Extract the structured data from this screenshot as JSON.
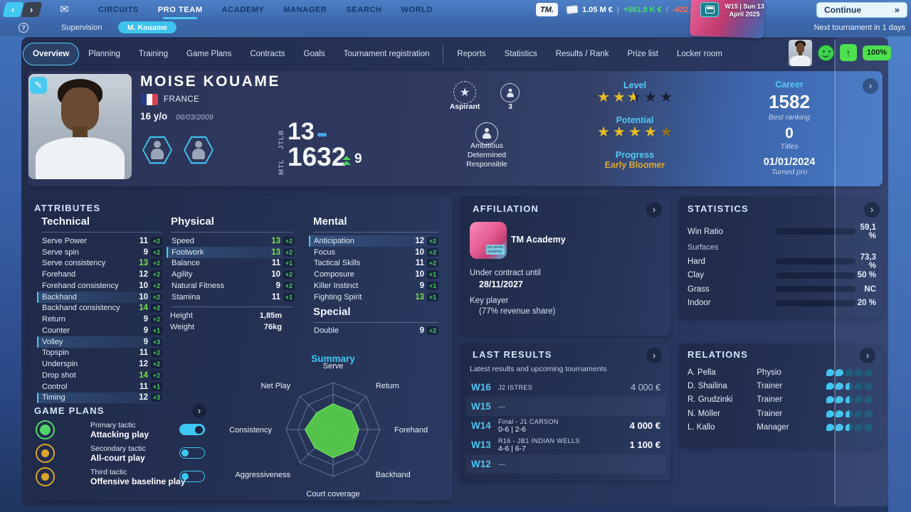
{
  "colors": {
    "accent": "#45c8f2",
    "positive": "#46e06a",
    "negative": "#ff6a55",
    "gold": "#e9bd23",
    "radar_fill": "#58d747",
    "bar_orange": "#e87c2e",
    "bar_blue": "#1f8fd6",
    "bar_red": "#d63a20"
  },
  "topbar": {
    "nav": [
      {
        "label": "CIRCUITS"
      },
      {
        "label": "PRO TEAM",
        "active": true
      },
      {
        "label": "ACADEMY"
      },
      {
        "label": "MANAGER"
      },
      {
        "label": "SEARCH"
      },
      {
        "label": "WORLD"
      }
    ],
    "logo": "TM.",
    "balance": "1.05 M €",
    "separator": "|",
    "income": "+561.9 K €",
    "slash": "/",
    "expense": "-422.5 K €",
    "date_line1": "W15 | Sun 13",
    "date_line2": "April 2025",
    "continue_label": "Continue",
    "sub": {
      "supervision": "Supervision",
      "player_pill": "M. Kouame",
      "next_tournament": "Next tournament in 1 days"
    }
  },
  "tabs": {
    "primary": [
      {
        "label": "Overview",
        "active": true
      },
      {
        "label": "Planning"
      },
      {
        "label": "Training"
      },
      {
        "label": "Game Plans"
      },
      {
        "label": "Contracts"
      },
      {
        "label": "Goals"
      },
      {
        "label": "Tournament registration"
      }
    ],
    "secondary": [
      {
        "label": "Reports"
      },
      {
        "label": "Statistics"
      },
      {
        "label": "Results / Rank"
      },
      {
        "label": "Prize list"
      },
      {
        "label": "Locker room"
      }
    ],
    "condition_pct": "100%"
  },
  "player": {
    "name": "MOISE KOUAME",
    "country": "FRANCE",
    "age": "16 y/o",
    "birthdate": "06/03/2009",
    "jtlb_label": "JTLB",
    "jtlb_rank": "13",
    "mtl_label": "MTL",
    "mtl_rank": "1632",
    "mtl_change": "9",
    "status": "Aspirant",
    "status_count": "3",
    "traits": [
      "Ambitious",
      "Determined",
      "Responsible"
    ],
    "level_label": "Level",
    "level_stars": {
      "full": 2,
      "half": 1,
      "dim": 0
    },
    "potential_label": "Potential",
    "potential_stars": {
      "full": 4,
      "half": 0,
      "dim": 1
    },
    "progress_label": "Progress",
    "progress_value": "Early Bloomer",
    "career": {
      "label": "Career",
      "best_ranking": "1582",
      "best_ranking_label": "Best ranking",
      "titles": "0",
      "titles_label": "Titles",
      "turned_pro": "01/01/2024",
      "turned_pro_label": "Turned pro"
    }
  },
  "attributes": {
    "title": "ATTRIBUTES",
    "technical": {
      "name": "Technical",
      "items": [
        {
          "label": "Serve Power",
          "value": "11",
          "bonus": "+2"
        },
        {
          "label": "Serve spin",
          "value": "9",
          "bonus": "+2"
        },
        {
          "label": "Serve consistency",
          "value": "13",
          "bonus": "+2",
          "green": true
        },
        {
          "label": "Forehand",
          "value": "12",
          "bonus": "+2"
        },
        {
          "label": "Forehand consistency",
          "value": "10",
          "bonus": "+2"
        },
        {
          "label": "Backhand",
          "value": "10",
          "bonus": "+2",
          "highlight": true
        },
        {
          "label": "Backhand consistency",
          "value": "14",
          "bonus": "+2",
          "green": true
        },
        {
          "label": "Return",
          "value": "9",
          "bonus": "+2"
        },
        {
          "label": "Counter",
          "value": "9",
          "bonus": "+1"
        },
        {
          "label": "Volley",
          "value": "9",
          "bonus": "+3",
          "highlight": true
        },
        {
          "label": "Topspin",
          "value": "11",
          "bonus": "+2"
        },
        {
          "label": "Underspin",
          "value": "12",
          "bonus": "+2"
        },
        {
          "label": "Drop shot",
          "value": "14",
          "bonus": "+2",
          "green": true
        },
        {
          "label": "Control",
          "value": "11",
          "bonus": "+1"
        },
        {
          "label": "Timing",
          "value": "12",
          "bonus": "+3",
          "highlight": true
        }
      ]
    },
    "physical": {
      "name": "Physical",
      "items": [
        {
          "label": "Speed",
          "value": "13",
          "bonus": "+2",
          "green": true
        },
        {
          "label": "Footwork",
          "value": "13",
          "bonus": "+2",
          "green": true,
          "highlight": true
        },
        {
          "label": "Balance",
          "value": "11",
          "bonus": "+1"
        },
        {
          "label": "Agility",
          "value": "10",
          "bonus": "+2"
        },
        {
          "label": "Natural Fitness",
          "value": "9",
          "bonus": "+2"
        },
        {
          "label": "Stamina",
          "value": "11",
          "bonus": "+1"
        }
      ],
      "extra": [
        {
          "label": "Height",
          "value": "1,85m"
        },
        {
          "label": "Weight",
          "value": "76kg"
        }
      ]
    },
    "mental": {
      "name": "Mental",
      "items": [
        {
          "label": "Anticipation",
          "value": "12",
          "bonus": "+2",
          "highlight": true
        },
        {
          "label": "Focus",
          "value": "10",
          "bonus": "+2"
        },
        {
          "label": "Tactical Skills",
          "value": "11",
          "bonus": "+2"
        },
        {
          "label": "Composure",
          "value": "10",
          "bonus": "+1"
        },
        {
          "label": "Killer Instinct",
          "value": "9",
          "bonus": "+1"
        },
        {
          "label": "Fighting Spirit",
          "value": "13",
          "bonus": "+1",
          "green": true
        }
      ]
    },
    "special": {
      "name": "Special",
      "items": [
        {
          "label": "Double",
          "value": "9",
          "bonus": "+2"
        }
      ]
    }
  },
  "game_plans": {
    "title": "GAME PLANS",
    "tactics": [
      {
        "tier": "Primary tactic",
        "plan": "Attacking play",
        "enabled": true,
        "green": true
      },
      {
        "tier": "Secondary tactic",
        "plan": "All-court play",
        "orange": true
      },
      {
        "tier": "Third tactic",
        "plan": "Offensive baseline play",
        "orange": true
      }
    ]
  },
  "chart_data": {
    "type": "radar",
    "title": "Summary",
    "axes": [
      "Serve",
      "Return",
      "Forehand",
      "Backhand",
      "Court coverage",
      "Aggressiveness",
      "Consistency",
      "Net Play"
    ],
    "values": [
      11,
      11,
      11,
      12,
      12,
      11,
      12,
      10
    ],
    "max": 20,
    "grid_rings": 4,
    "fill_color": "#58d747",
    "legend_position": "none"
  },
  "affiliation": {
    "title": "AFFILIATION",
    "academy": "TM Academy",
    "logo_text": "pro tennis academy",
    "contract_label": "Under contract until",
    "contract_date": "28/11/2027",
    "role": "Key player",
    "revenue_share": "(77% revenue share)"
  },
  "statistics": {
    "title": "STATISTICS",
    "win_ratio": {
      "label": "Win Ratio",
      "value": "59,1 %",
      "pct": 59.1,
      "color": "#e87c2e"
    },
    "surfaces_label": "Surfaces",
    "surfaces": [
      {
        "label": "Hard",
        "value": "73,3 %",
        "pct": 73.3,
        "color": "#1f8fd6"
      },
      {
        "label": "Clay",
        "value": "50 %",
        "pct": 50,
        "color": "#e87c2e"
      },
      {
        "label": "Grass",
        "value": "NC",
        "pct": 0,
        "color": "transparent"
      },
      {
        "label": "Indoor",
        "value": "20 %",
        "pct": 20,
        "color": "#d63a20"
      }
    ]
  },
  "last_results": {
    "title": "LAST RESULTS",
    "subtitle": "Latest results and upcoming tournaments",
    "rows": [
      {
        "week": "W16",
        "line1": "J2 ISTRES",
        "line2": "",
        "prize": "4 000 €"
      },
      {
        "week": "W15",
        "line1": "---",
        "line2": "",
        "prize": "",
        "shaded": true
      },
      {
        "week": "W14",
        "line1": "Final - J1 CARSON",
        "line2": "0-6 | 2-6",
        "prize": "4 000 €",
        "bold": true
      },
      {
        "week": "W13",
        "line1": "R16 - JB1 INDIAN WELLS",
        "line2": "4-6 | 6-7",
        "prize": "1 100 €",
        "bold": true
      },
      {
        "week": "W12",
        "line1": "---",
        "line2": "",
        "prize": "",
        "shaded": true
      }
    ]
  },
  "relations": {
    "title": "RELATIONS",
    "rows": [
      {
        "name": "A. Pella",
        "role": "Physio",
        "rating": 2
      },
      {
        "name": "D. Shailina",
        "role": "Trainer",
        "rating": 2.5
      },
      {
        "name": "R. Grudzinki",
        "role": "Trainer",
        "rating": 2.5
      },
      {
        "name": "N. Möller",
        "role": "Trainer",
        "rating": 2.5
      },
      {
        "name": "L. Kallo",
        "role": "Manager",
        "rating": 2.5
      }
    ]
  }
}
